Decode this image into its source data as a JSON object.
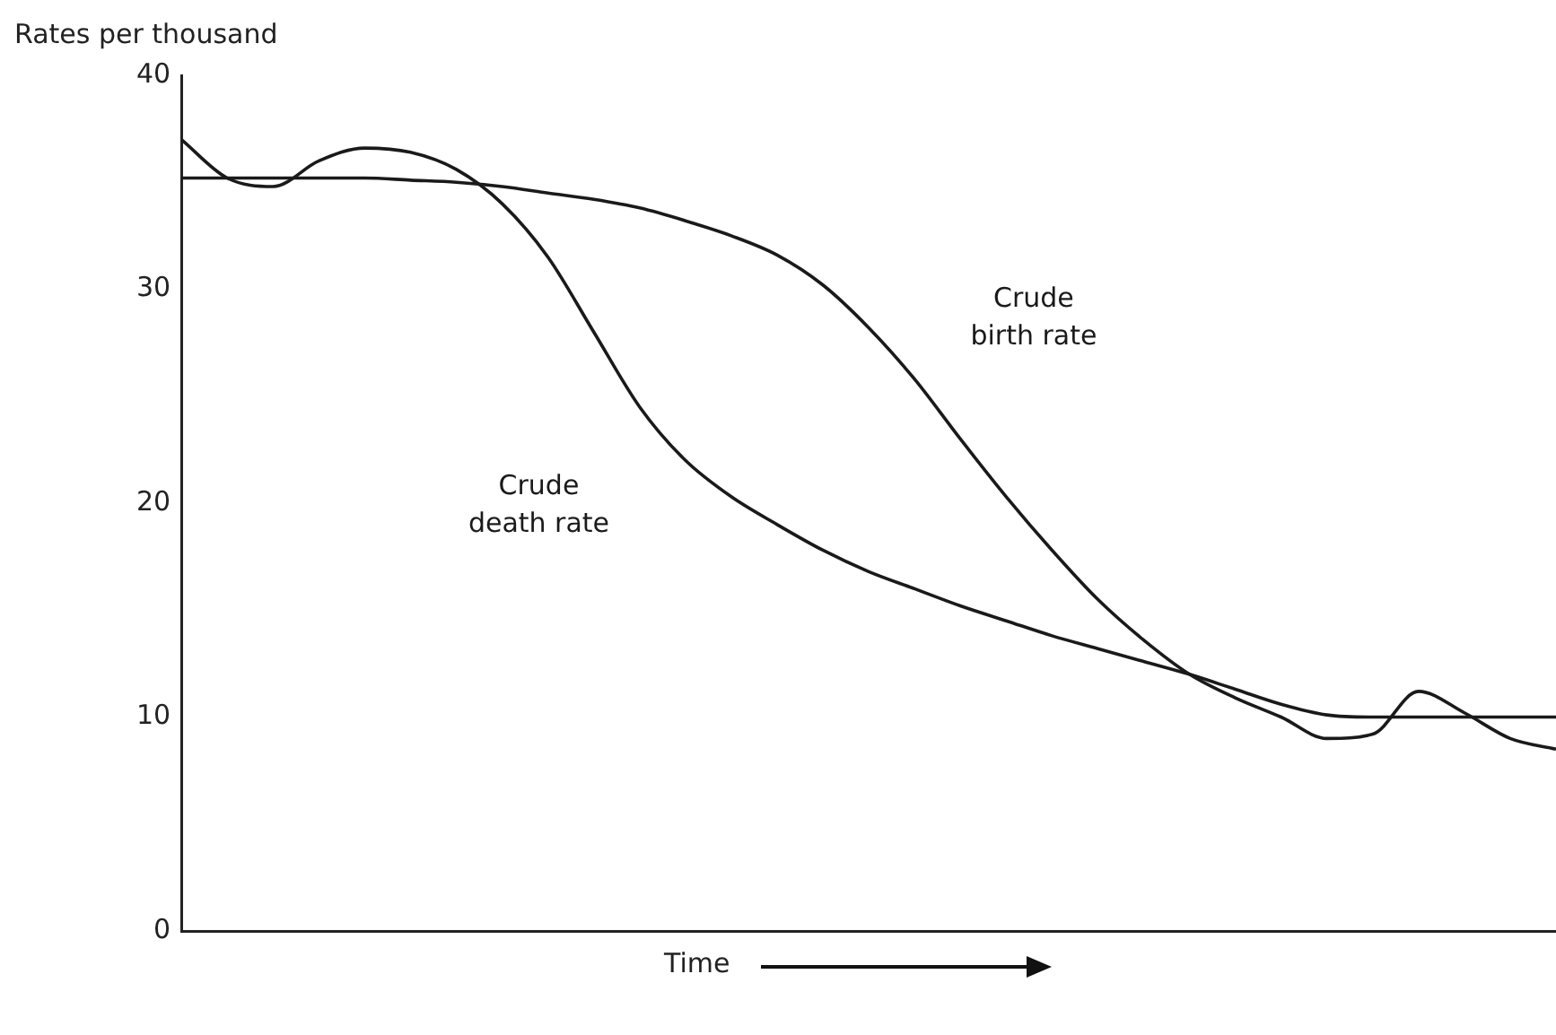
{
  "chart_data": {
    "type": "line",
    "ylabel": "Rates per thousand",
    "xlabel": "Time",
    "categories": [
      null,
      null,
      null,
      null,
      null,
      null,
      null,
      null,
      null,
      null,
      null,
      null,
      null,
      null,
      null,
      null,
      null,
      null,
      null,
      null,
      null,
      null,
      null,
      null,
      null,
      null,
      null,
      null,
      null,
      null,
      null
    ],
    "series": [
      {
        "name": "Crude birth rate",
        "color": "#1a1a1a",
        "values": [
          35.2,
          35.2,
          35.2,
          35.2,
          35.2,
          35.1,
          35.0,
          34.8,
          34.5,
          34.2,
          33.8,
          33.2,
          32.5,
          31.6,
          30.2,
          28.2,
          25.8,
          23.0,
          20.3,
          17.8,
          15.5,
          13.6,
          12.0,
          10.9,
          10.0,
          9.0,
          9.2,
          11.2,
          10.2,
          9.0,
          8.5
        ]
      },
      {
        "name": "Crude death rate",
        "color": "#1a1a1a",
        "values": [
          37.0,
          35.2,
          34.8,
          36.0,
          36.6,
          36.4,
          35.6,
          34.0,
          31.5,
          28.0,
          24.5,
          22.0,
          20.3,
          19.0,
          17.8,
          16.8,
          16.0,
          15.2,
          14.5,
          13.8,
          13.2,
          12.6,
          12.0,
          11.3,
          10.6,
          10.1,
          10.0,
          10.0,
          10.0,
          10.0,
          10.0
        ]
      }
    ],
    "ylim": [
      0,
      40
    ],
    "yticks": [
      0,
      10,
      20,
      30,
      40
    ],
    "grid": false,
    "legend": false,
    "marker": "none",
    "line_style": "solid",
    "tick_labels": "y"
  }
}
